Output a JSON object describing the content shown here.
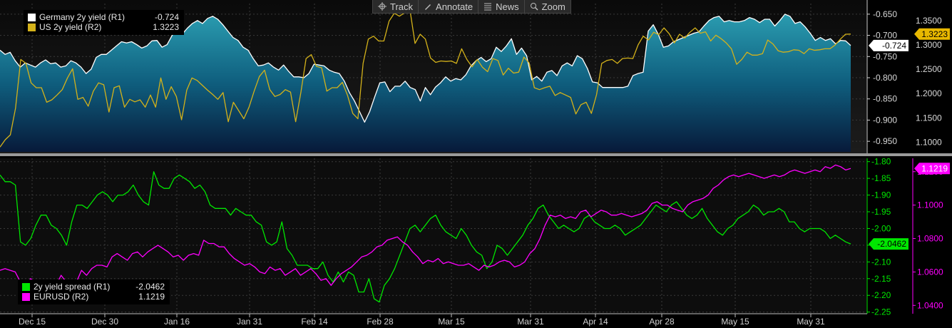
{
  "toolbar": [
    {
      "label": "Track",
      "icon": "crosshair-icon"
    },
    {
      "label": "Annotate",
      "icon": "pencil-icon"
    },
    {
      "label": "News",
      "icon": "news-icon"
    },
    {
      "label": "Zoom",
      "icon": "zoom-icon"
    }
  ],
  "legend_top": [
    {
      "label": "Germany 2y yield (R1)",
      "value": "-0.724",
      "color": "#ffffff"
    },
    {
      "label": "US 2y yield (R2)",
      "value": "1.3223",
      "color": "#d4b21a"
    }
  ],
  "legend_bottom": [
    {
      "label": "2y yield spread (R1)",
      "value": "-2.0462",
      "color": "#00e600"
    },
    {
      "label": "EURUSD (R2)",
      "value": "1.1219",
      "color": "#ff00ff"
    }
  ],
  "chart_data": [
    {
      "type": "area",
      "x_tick_labels": [
        "Dec 15",
        "Dec 30",
        "Jan 16",
        "Jan 31",
        "Feb 14",
        "Feb 28",
        "Mar 15",
        "Mar 31",
        "Apr 14",
        "Apr 28",
        "May 15",
        "May 31"
      ],
      "axes": {
        "R1": {
          "ticks": [
            "-0.650",
            "-0.700",
            "-0.750",
            "-0.800",
            "-0.850",
            "-0.900",
            "-0.950"
          ],
          "range": [
            -0.975,
            -0.625
          ]
        },
        "R2": {
          "ticks": [
            "1.3500",
            "1.3000",
            "1.2500",
            "1.2000",
            "1.1500",
            "1.1000"
          ],
          "range": [
            1.08,
            1.385
          ]
        }
      },
      "last_value_tags": [
        {
          "value": "1.3223",
          "axis": "R2",
          "bg": "#e8b800",
          "fg": "#000000"
        },
        {
          "value": "-0.724",
          "axis": "R1",
          "bg": "#ffffff",
          "fg": "#000000"
        }
      ],
      "series": [
        {
          "name": "Germany 2y yield (R1)",
          "axis": "R1",
          "color": "#ffffff",
          "fill": true,
          "values": [
            -0.735,
            -0.745,
            -0.74,
            -0.76,
            -0.775,
            -0.765,
            -0.77,
            -0.775,
            -0.765,
            -0.758,
            -0.767,
            -0.765,
            -0.775,
            -0.772,
            -0.76,
            -0.765,
            -0.775,
            -0.79,
            -0.78,
            -0.752,
            -0.745,
            -0.745,
            -0.735,
            -0.725,
            -0.715,
            -0.718,
            -0.715,
            -0.722,
            -0.73,
            -0.725,
            -0.713,
            -0.712,
            -0.728,
            -0.722,
            -0.7,
            -0.685,
            -0.697,
            -0.683,
            -0.672,
            -0.665,
            -0.672,
            -0.66,
            -0.655,
            -0.662,
            -0.675,
            -0.69,
            -0.705,
            -0.712,
            -0.728,
            -0.735,
            -0.755,
            -0.772,
            -0.77,
            -0.765,
            -0.775,
            -0.782,
            -0.77,
            -0.785,
            -0.798,
            -0.798,
            -0.8,
            -0.79,
            -0.768,
            -0.77,
            -0.772,
            -0.782,
            -0.787,
            -0.79,
            -0.808,
            -0.835,
            -0.855,
            -0.88,
            -0.905,
            -0.88,
            -0.845,
            -0.812,
            -0.81,
            -0.833,
            -0.82,
            -0.82,
            -0.808,
            -0.823,
            -0.828,
            -0.855,
            -0.823,
            -0.84,
            -0.822,
            -0.812,
            -0.798,
            -0.808,
            -0.802,
            -0.805,
            -0.793,
            -0.772,
            -0.76,
            -0.752,
            -0.762,
            -0.755,
            -0.728,
            -0.738,
            -0.725,
            -0.708,
            -0.745,
            -0.73,
            -0.748,
            -0.805,
            -0.797,
            -0.808,
            -0.787,
            -0.783,
            -0.795,
            -0.772,
            -0.765,
            -0.772,
            -0.748,
            -0.755,
            -0.778,
            -0.81,
            -0.812,
            -0.823,
            -0.823,
            -0.823,
            -0.823,
            -0.823,
            -0.82,
            -0.795,
            -0.79,
            -0.787,
            -0.69,
            -0.675,
            -0.698,
            -0.728,
            -0.725,
            -0.715,
            -0.71,
            -0.705,
            -0.7,
            -0.695,
            -0.692,
            -0.678,
            -0.665,
            -0.658,
            -0.655,
            -0.668,
            -0.665,
            -0.668,
            -0.668,
            -0.665,
            -0.658,
            -0.662,
            -0.67,
            -0.662,
            -0.662,
            -0.678,
            -0.665,
            -0.65,
            -0.655,
            -0.672,
            -0.668,
            -0.68,
            -0.695,
            -0.712,
            -0.705,
            -0.712,
            -0.708,
            -0.72,
            -0.712,
            -0.713,
            -0.724
          ]
        },
        {
          "name": "US 2y yield (R2)",
          "axis": "R2",
          "color": "#d4b21a",
          "fill": false,
          "values": [
            1.09,
            1.105,
            1.115,
            1.17,
            1.27,
            1.262,
            1.222,
            1.212,
            1.212,
            1.182,
            1.187,
            1.197,
            1.208,
            1.232,
            1.251,
            1.188,
            1.192,
            1.174,
            1.205,
            1.222,
            1.218,
            1.162,
            1.212,
            1.216,
            1.172,
            1.188,
            1.183,
            1.187,
            1.172,
            1.197,
            1.172,
            1.232,
            1.188,
            1.214,
            1.194,
            1.146,
            1.207,
            1.232,
            1.227,
            1.217,
            1.207,
            1.198,
            1.188,
            1.202,
            1.142,
            1.182,
            1.165,
            1.148,
            1.172,
            1.205,
            1.235,
            1.248,
            1.208,
            1.194,
            1.198,
            1.208,
            1.203,
            1.142,
            1.202,
            1.272,
            1.28,
            1.256,
            1.253,
            1.205,
            1.212,
            1.212,
            1.223,
            1.196,
            1.159,
            1.148,
            1.262,
            1.312,
            1.318,
            1.308,
            1.308,
            1.349,
            1.365,
            1.359,
            1.366,
            1.374,
            1.303,
            1.322,
            1.312,
            1.273,
            1.264,
            1.267,
            1.266,
            1.267,
            1.262,
            1.292,
            1.27,
            1.255,
            1.27,
            1.254,
            1.245,
            1.272,
            1.268,
            1.238,
            1.252,
            1.242,
            1.244,
            1.275,
            1.263,
            1.212,
            1.208,
            1.212,
            1.215,
            1.196,
            1.202,
            1.197,
            1.192,
            1.158,
            1.177,
            1.182,
            1.159,
            1.198,
            1.262,
            1.268,
            1.27,
            1.262,
            1.272,
            1.273,
            1.272,
            1.3,
            1.318,
            1.31,
            1.326,
            1.321,
            1.335,
            1.323,
            1.304,
            1.322,
            1.314,
            1.326,
            1.335,
            1.324,
            1.327,
            1.308,
            1.32,
            1.313,
            1.304,
            1.292,
            1.26,
            1.27,
            1.285,
            1.279,
            1.279,
            1.282,
            1.31,
            1.302,
            1.288,
            1.285,
            1.286,
            1.29,
            1.289,
            1.282,
            1.292,
            1.289,
            1.29,
            1.292,
            1.292,
            1.3,
            1.312,
            1.322,
            1.3223
          ]
        }
      ]
    },
    {
      "type": "line",
      "x_tick_labels": [
        "Dec 15",
        "Dec 30",
        "Jan 16",
        "Jan 31",
        "Feb 14",
        "Feb 28",
        "Mar 15",
        "Mar 31",
        "Apr 14",
        "Apr 28",
        "May 15",
        "May 31"
      ],
      "axes": {
        "R1": {
          "ticks": [
            "-1.80",
            "-1.85",
            "-1.90",
            "-1.95",
            "-2.00",
            "-2.05",
            "-2.10",
            "-2.15",
            "-2.20",
            "-2.25"
          ],
          "range": [
            -2.255,
            -1.79
          ]
        },
        "R2": {
          "ticks": [
            "1.1200",
            "1.1000",
            "1.0800",
            "1.0600",
            "1.0400"
          ],
          "range": [
            1.035,
            1.128
          ]
        }
      },
      "last_value_tags": [
        {
          "value": "1.1219",
          "axis": "R2",
          "bg": "#ff00ff",
          "fg": "#ffffff"
        },
        {
          "value": "-2.0462",
          "axis": "R1",
          "bg": "#00e600",
          "fg": "#000000"
        }
      ],
      "series": [
        {
          "name": "2y yield spread (R1)",
          "axis": "R1",
          "color": "#00e600",
          "values": [
            -1.84,
            -1.86,
            -1.86,
            -1.87,
            -2.04,
            -2.05,
            -2.03,
            -1.99,
            -1.96,
            -1.96,
            -1.99,
            -2.0,
            -2.02,
            -2.05,
            -1.98,
            -1.93,
            -1.93,
            -1.94,
            -1.92,
            -1.9,
            -1.89,
            -1.9,
            -1.92,
            -1.9,
            -1.9,
            -1.89,
            -1.87,
            -1.9,
            -1.92,
            -1.93,
            -1.83,
            -1.87,
            -1.88,
            -1.88,
            -1.85,
            -1.84,
            -1.85,
            -1.86,
            -1.88,
            -1.87,
            -1.89,
            -1.93,
            -1.94,
            -1.94,
            -1.94,
            -1.96,
            -1.94,
            -1.95,
            -1.96,
            -1.96,
            -1.98,
            -1.99,
            -2.04,
            -2.05,
            -2.04,
            -1.98,
            -2.06,
            -2.08,
            -2.11,
            -2.11,
            -2.11,
            -2.12,
            -2.12,
            -2.1,
            -2.14,
            -2.16,
            -2.13,
            -2.16,
            -2.13,
            -2.14,
            -2.19,
            -2.19,
            -2.15,
            -2.21,
            -2.22,
            -2.17,
            -2.15,
            -2.12,
            -2.08,
            -2.04,
            -2.0,
            -1.99,
            -2.01,
            -1.99,
            -1.97,
            -1.96,
            -1.99,
            -2.01,
            -2.02,
            -2.03,
            -2.0,
            -2.02,
            -2.05,
            -2.07,
            -2.08,
            -2.12,
            -2.1,
            -2.05,
            -2.06,
            -2.08,
            -2.06,
            -2.04,
            -2.02,
            -1.99,
            -1.97,
            -1.94,
            -1.93,
            -1.96,
            -1.98,
            -2.0,
            -1.99,
            -2.0,
            -2.01,
            -2.0,
            -1.97,
            -1.96,
            -1.98,
            -1.99,
            -2.0,
            -2.0,
            -1.99,
            -2.0,
            -2.02,
            -2.01,
            -2.0,
            -1.99,
            -1.97,
            -1.95,
            -1.93,
            -1.94,
            -1.95,
            -1.93,
            -1.92,
            -1.94,
            -1.96,
            -1.97,
            -1.96,
            -1.94,
            -1.97,
            -1.99,
            -2.01,
            -2.02,
            -2.0,
            -1.99,
            -1.97,
            -1.96,
            -1.95,
            -1.93,
            -1.94,
            -1.96,
            -1.95,
            -1.95,
            -1.94,
            -1.95,
            -1.98,
            -1.98,
            -2.0,
            -2.01,
            -2.0,
            -2.0,
            -2.0,
            -2.01,
            -2.03,
            -2.02,
            -2.03,
            -2.04,
            -2.0462
          ]
        },
        {
          "name": "EURUSD (R2)",
          "axis": "R2",
          "color": "#ff00ff",
          "values": [
            1.061,
            1.062,
            1.061,
            1.06,
            1.054,
            1.052,
            1.056,
            1.054,
            1.051,
            1.055,
            1.051,
            1.052,
            1.058,
            1.054,
            1.053,
            1.054,
            1.061,
            1.058,
            1.062,
            1.064,
            1.064,
            1.063,
            1.069,
            1.071,
            1.069,
            1.067,
            1.071,
            1.072,
            1.069,
            1.072,
            1.074,
            1.076,
            1.074,
            1.072,
            1.069,
            1.07,
            1.067,
            1.07,
            1.071,
            1.07,
            1.079,
            1.077,
            1.077,
            1.075,
            1.075,
            1.071,
            1.068,
            1.066,
            1.064,
            1.065,
            1.063,
            1.06,
            1.059,
            1.063,
            1.061,
            1.062,
            1.058,
            1.06,
            1.062,
            1.058,
            1.06,
            1.062,
            1.059,
            1.055,
            1.056,
            1.052,
            1.056,
            1.059,
            1.061,
            1.063,
            1.066,
            1.069,
            1.07,
            1.072,
            1.075,
            1.076,
            1.079,
            1.08,
            1.081,
            1.078,
            1.076,
            1.072,
            1.069,
            1.065,
            1.067,
            1.066,
            1.068,
            1.065,
            1.066,
            1.065,
            1.064,
            1.064,
            1.065,
            1.063,
            1.061,
            1.064,
            1.063,
            1.064,
            1.066,
            1.067,
            1.066,
            1.063,
            1.064,
            1.066,
            1.071,
            1.074,
            1.08,
            1.088,
            1.094,
            1.093,
            1.094,
            1.092,
            1.093,
            1.092,
            1.096,
            1.097,
            1.093,
            1.095,
            1.097,
            1.096,
            1.094,
            1.094,
            1.095,
            1.094,
            1.093,
            1.094,
            1.095,
            1.097,
            1.101,
            1.102,
            1.1,
            1.1,
            1.098,
            1.097,
            1.096,
            1.1,
            1.102,
            1.103,
            1.104,
            1.106,
            1.11,
            1.112,
            1.115,
            1.117,
            1.118,
            1.117,
            1.118,
            1.119,
            1.118,
            1.117,
            1.116,
            1.117,
            1.118,
            1.117,
            1.118,
            1.12,
            1.121,
            1.12,
            1.119,
            1.12,
            1.121,
            1.12,
            1.123,
            1.122,
            1.124,
            1.123,
            1.121,
            1.1219
          ]
        }
      ]
    }
  ]
}
